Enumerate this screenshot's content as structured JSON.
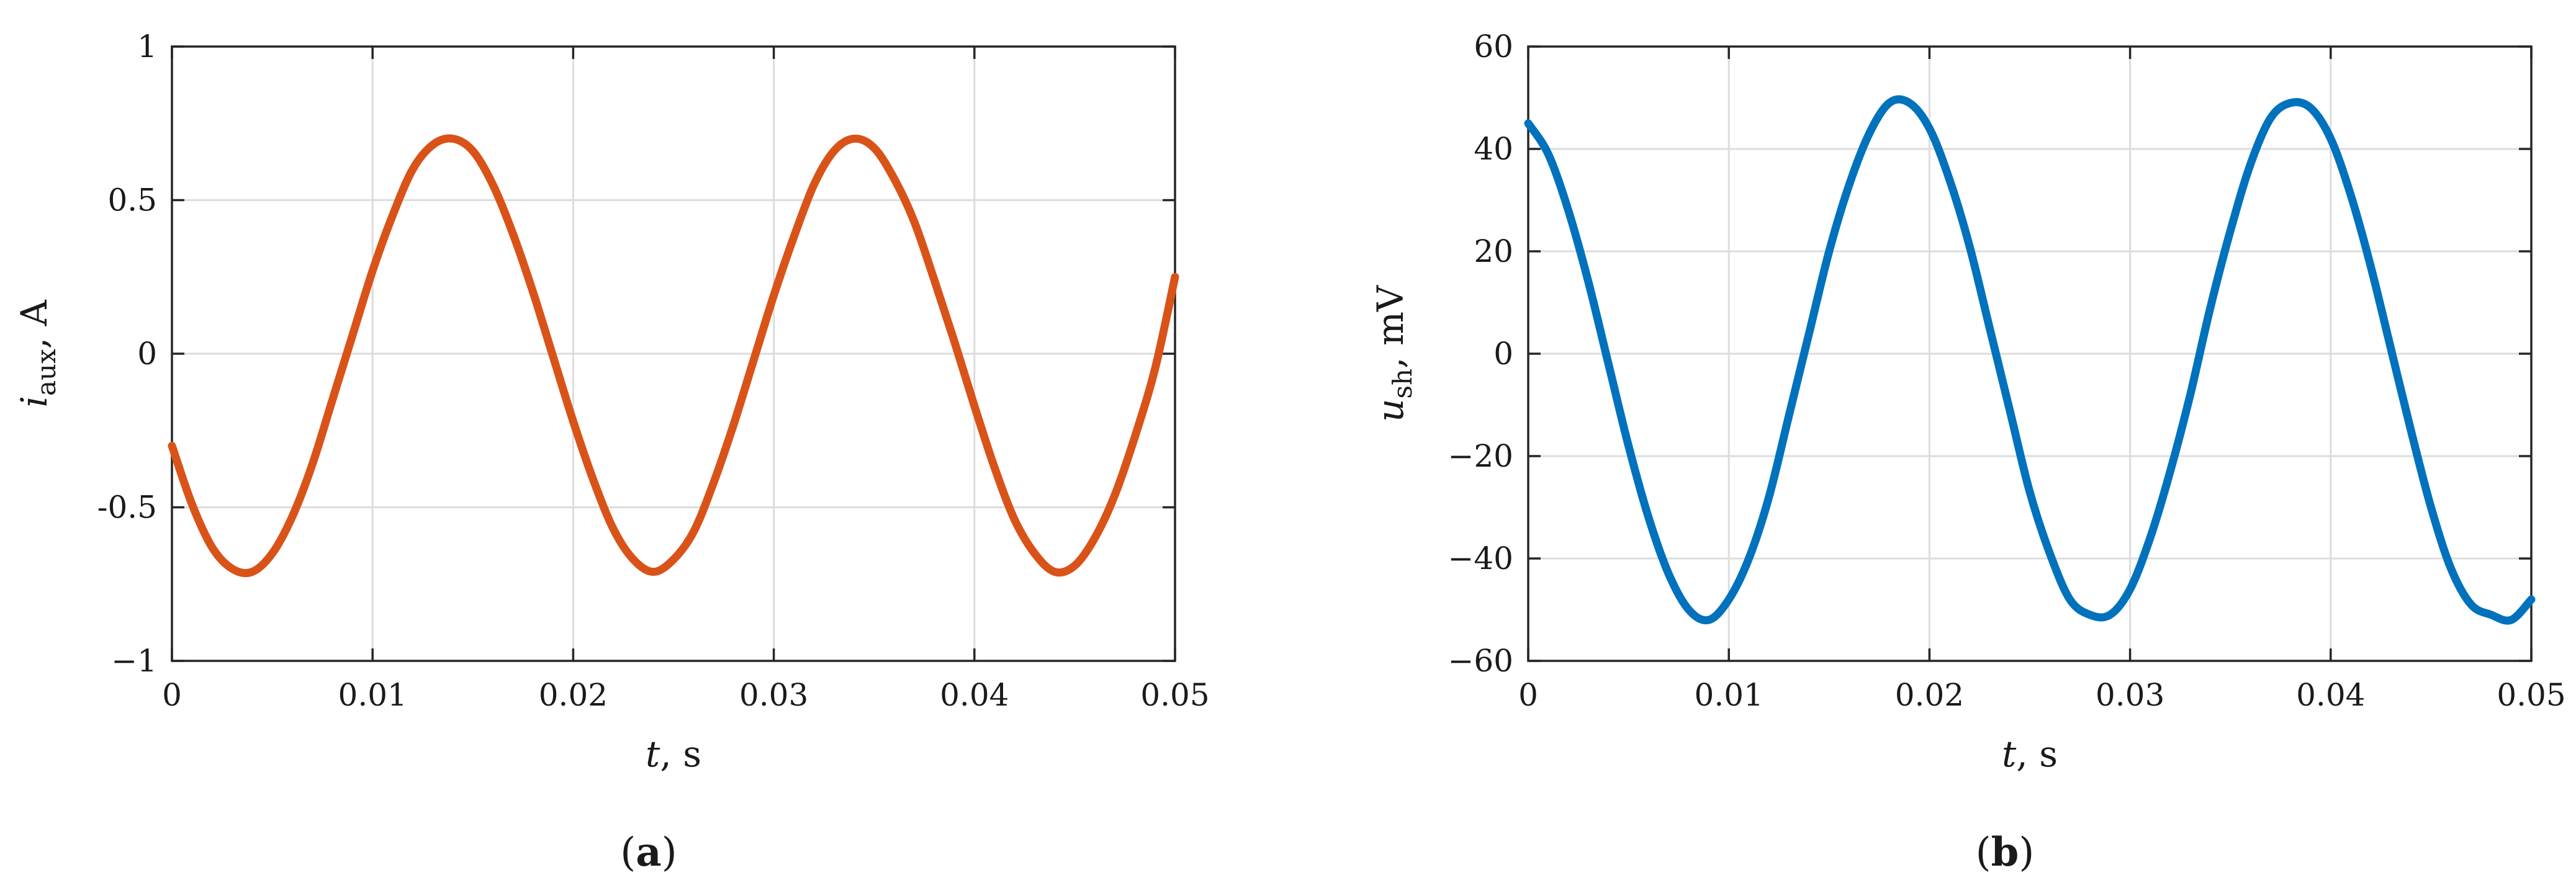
{
  "chart_data": [
    {
      "type": "line",
      "panel_label": {
        "open": "(",
        "letter": "a",
        "close": ")"
      },
      "xlabel": {
        "symbol": "t",
        "unit": ", s"
      },
      "ylabel": {
        "symbol": "i",
        "subscript": "aux",
        "unit": ", A"
      },
      "xlim": [
        0,
        0.05
      ],
      "ylim": [
        -1,
        1
      ],
      "xticks": [
        0,
        0.01,
        0.02,
        0.03,
        0.04,
        0.05
      ],
      "xtick_labels": [
        "0",
        "0.01",
        "0.02",
        "0.03",
        "0.04",
        "0.05"
      ],
      "yticks": [
        -1,
        -0.5,
        0,
        0.5,
        1
      ],
      "ytick_labels": [
        "−1",
        "-0.5",
        "0",
        "0.5",
        "1"
      ],
      "grid": true,
      "color": "#d95319",
      "series": [
        {
          "x": [
            0,
            0.001,
            0.002,
            0.003,
            0.004,
            0.005,
            0.006,
            0.007,
            0.008,
            0.009,
            0.01,
            0.011,
            0.012,
            0.013,
            0.014,
            0.015,
            0.016,
            0.017,
            0.018,
            0.019,
            0.02,
            0.021,
            0.022,
            0.023,
            0.024,
            0.025,
            0.026,
            0.027,
            0.028,
            0.029,
            0.03,
            0.031,
            0.032,
            0.033,
            0.034,
            0.035,
            0.036,
            0.037,
            0.038,
            0.039,
            0.04,
            0.041,
            0.042,
            0.043,
            0.044,
            0.045,
            0.046,
            0.047,
            0.048,
            0.049,
            0.05
          ],
          "values": [
            -0.3,
            -0.49,
            -0.63,
            -0.7,
            -0.71,
            -0.65,
            -0.53,
            -0.36,
            -0.15,
            0.06,
            0.27,
            0.45,
            0.6,
            0.68,
            0.7,
            0.66,
            0.55,
            0.39,
            0.2,
            -0.01,
            -0.22,
            -0.41,
            -0.57,
            -0.67,
            -0.71,
            -0.67,
            -0.58,
            -0.42,
            -0.23,
            -0.02,
            0.19,
            0.38,
            0.55,
            0.66,
            0.7,
            0.67,
            0.57,
            0.43,
            0.24,
            0.04,
            -0.17,
            -0.37,
            -0.54,
            -0.65,
            -0.71,
            -0.69,
            -0.6,
            -0.46,
            -0.27,
            -0.05,
            0.25
          ]
        }
      ]
    },
    {
      "type": "line",
      "panel_label": {
        "open": "(",
        "letter": "b",
        "close": ")"
      },
      "xlabel": {
        "symbol": "t",
        "unit": ", s"
      },
      "ylabel": {
        "symbol": "u",
        "subscript": "sh",
        "unit": ", mV"
      },
      "xlim": [
        0,
        0.05
      ],
      "ylim": [
        -60,
        60
      ],
      "xticks": [
        0,
        0.01,
        0.02,
        0.03,
        0.04,
        0.05
      ],
      "xtick_labels": [
        "0",
        "0.01",
        "0.02",
        "0.03",
        "0.04",
        "0.05"
      ],
      "yticks": [
        -60,
        -40,
        -20,
        0,
        20,
        40,
        60
      ],
      "ytick_labels": [
        "−60",
        "−40",
        "−20",
        "0",
        "20",
        "40",
        "60"
      ],
      "grid": true,
      "color": "#0072bd",
      "series": [
        {
          "x": [
            0,
            0.001,
            0.002,
            0.003,
            0.004,
            0.005,
            0.006,
            0.007,
            0.008,
            0.009,
            0.01,
            0.011,
            0.012,
            0.013,
            0.014,
            0.015,
            0.016,
            0.017,
            0.018,
            0.019,
            0.02,
            0.021,
            0.022,
            0.023,
            0.024,
            0.025,
            0.026,
            0.027,
            0.028,
            0.029,
            0.03,
            0.031,
            0.032,
            0.033,
            0.034,
            0.035,
            0.036,
            0.037,
            0.038,
            0.039,
            0.04,
            0.041,
            0.042,
            0.043,
            0.044,
            0.045,
            0.046,
            0.047,
            0.048,
            0.049,
            0.05
          ],
          "values": [
            45,
            39,
            28,
            14,
            -2,
            -18,
            -32,
            -43,
            -50,
            -52,
            -48,
            -40,
            -28,
            -12,
            4,
            20,
            33,
            43,
            49,
            49,
            44,
            34,
            21,
            5,
            -11,
            -27,
            -39,
            -48,
            -51,
            -51,
            -46,
            -36,
            -23,
            -8,
            9,
            24,
            37,
            46,
            49,
            48,
            42,
            31,
            17,
            1,
            -15,
            -30,
            -42,
            -49,
            -51,
            -52,
            -48
          ]
        }
      ]
    }
  ]
}
